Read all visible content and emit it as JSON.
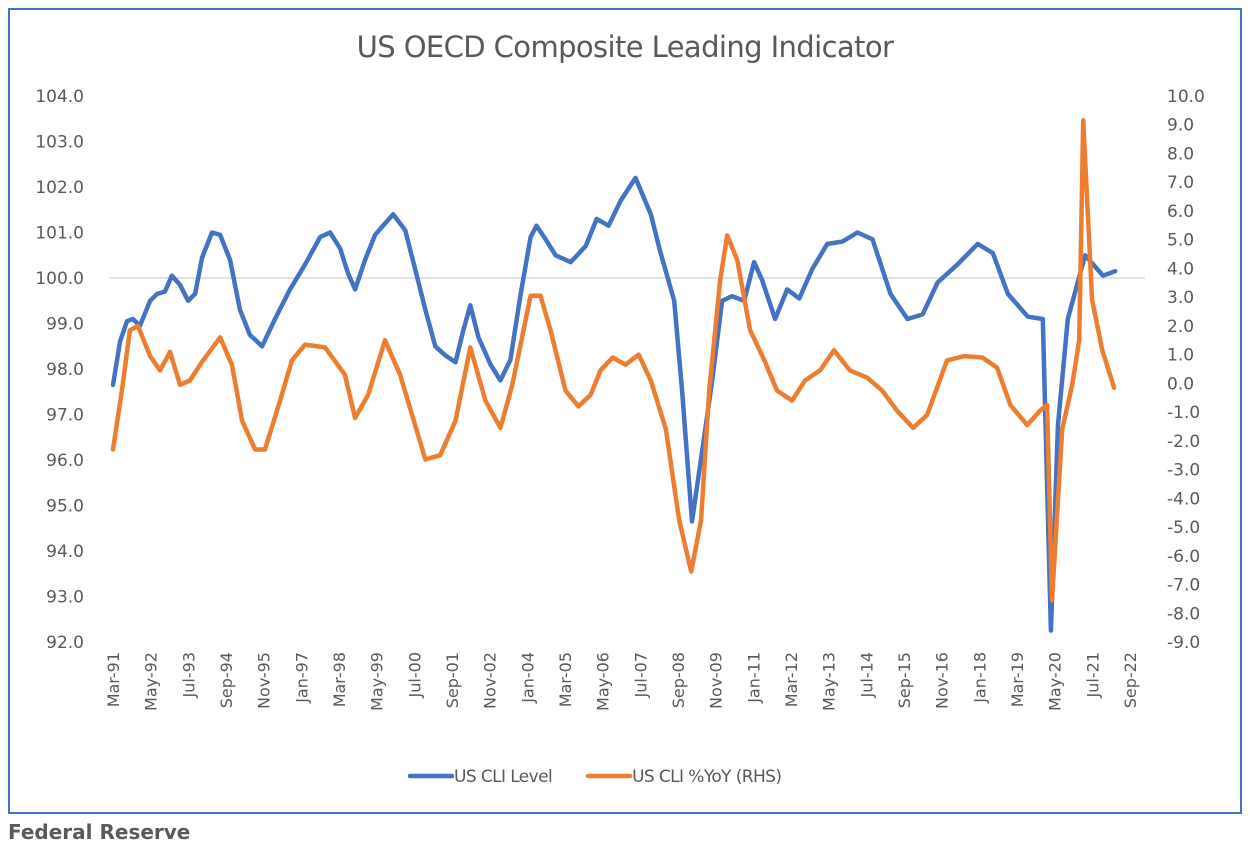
{
  "chart_data": {
    "type": "line",
    "title": "US OECD Composite Leading Indicator",
    "source": "Federal Reserve",
    "x_start": "Mar-91",
    "x_tick_labels": [
      "Mar-91",
      "May-92",
      "Jul-93",
      "Sep-94",
      "Nov-95",
      "Jan-97",
      "Mar-98",
      "May-99",
      "Jul-00",
      "Sep-01",
      "Nov-02",
      "Jan-04",
      "Mar-05",
      "May-06",
      "Jul-07",
      "Sep-08",
      "Nov-09",
      "Jan-11",
      "Mar-12",
      "May-13",
      "Jul-14",
      "Sep-15",
      "Nov-16",
      "Jan-18",
      "Mar-19",
      "May-20",
      "Jul-21",
      "Sep-22"
    ],
    "x_tick_interval_months": 14,
    "x_range_months": [
      0,
      378
    ],
    "reference_line": {
      "axis": "left",
      "value": 100.0
    },
    "axes": {
      "left": {
        "min": 92.0,
        "max": 104.0,
        "step": 1.0,
        "decimals": 1
      },
      "right": {
        "min": -9.0,
        "max": 10.0,
        "step": 1.0,
        "decimals": 1
      }
    },
    "legend_position": "bottom",
    "series": [
      {
        "name": "US CLI Level",
        "axis": "left",
        "color": "#4472c4",
        "points_month_value": [
          [
            0,
            97.65
          ],
          [
            2.6,
            98.6
          ],
          [
            5.2,
            99.05
          ],
          [
            7.4,
            99.1
          ],
          [
            10,
            98.95
          ],
          [
            13.8,
            99.5
          ],
          [
            16.4,
            99.65
          ],
          [
            19.3,
            99.7
          ],
          [
            21.9,
            100.05
          ],
          [
            24.9,
            99.85
          ],
          [
            27.9,
            99.5
          ],
          [
            30.5,
            99.65
          ],
          [
            33.1,
            100.45
          ],
          [
            36.8,
            101.0
          ],
          [
            39.8,
            100.95
          ],
          [
            43.5,
            100.4
          ],
          [
            47.2,
            99.3
          ],
          [
            50.9,
            98.75
          ],
          [
            55.4,
            98.5
          ],
          [
            60.2,
            99.1
          ],
          [
            65.8,
            99.75
          ],
          [
            71.4,
            100.3
          ],
          [
            77,
            100.9
          ],
          [
            80.7,
            101.0
          ],
          [
            84.4,
            100.65
          ],
          [
            87.4,
            100.1
          ],
          [
            90,
            99.75
          ],
          [
            93.7,
            100.4
          ],
          [
            97.4,
            100.95
          ],
          [
            104.1,
            101.4
          ],
          [
            108.6,
            101.05
          ],
          [
            112.3,
            100.2
          ],
          [
            116.1,
            99.3
          ],
          [
            119.8,
            98.5
          ],
          [
            123.5,
            98.3
          ],
          [
            127.3,
            98.15
          ],
          [
            130.2,
            98.85
          ],
          [
            132.8,
            99.4
          ],
          [
            135.8,
            98.7
          ],
          [
            140.3,
            98.1
          ],
          [
            144,
            97.75
          ],
          [
            147.7,
            98.2
          ],
          [
            151.4,
            99.6
          ],
          [
            155.2,
            100.9
          ],
          [
            157.4,
            101.15
          ],
          [
            160.8,
            100.85
          ],
          [
            164.5,
            100.5
          ],
          [
            170.1,
            100.35
          ],
          [
            175.7,
            100.7
          ],
          [
            179.8,
            101.3
          ],
          [
            184.2,
            101.15
          ],
          [
            188.7,
            101.7
          ],
          [
            194.2,
            102.2
          ],
          [
            199.9,
            101.4
          ],
          [
            203.3,
            100.6
          ],
          [
            208.6,
            99.5
          ],
          [
            211.5,
            97.55
          ],
          [
            215.2,
            94.65
          ],
          [
            219,
            96.2
          ],
          [
            222.7,
            97.75
          ],
          [
            226.4,
            99.5
          ],
          [
            230.1,
            99.6
          ],
          [
            234.6,
            99.5
          ],
          [
            238.3,
            100.35
          ],
          [
            241.3,
            99.95
          ],
          [
            246.1,
            99.1
          ],
          [
            250.6,
            99.75
          ],
          [
            255.1,
            99.55
          ],
          [
            259.9,
            100.2
          ],
          [
            265.5,
            100.75
          ],
          [
            271.1,
            100.8
          ],
          [
            276.7,
            101.0
          ],
          [
            282.3,
            100.85
          ],
          [
            289,
            99.65
          ],
          [
            295.3,
            99.1
          ],
          [
            300.9,
            99.2
          ],
          [
            306.5,
            99.9
          ],
          [
            313.9,
            100.3
          ],
          [
            321.4,
            100.75
          ],
          [
            327,
            100.55
          ],
          [
            332.6,
            99.65
          ],
          [
            340,
            99.15
          ],
          [
            345.6,
            99.1
          ],
          [
            348.6,
            92.25
          ],
          [
            351.2,
            96.75
          ],
          [
            354.9,
            99.1
          ],
          [
            361.3,
            100.5
          ],
          [
            368,
            100.05
          ],
          [
            372.5,
            100.15
          ]
        ]
      },
      {
        "name": "US CLI %YoY (RHS)",
        "axis": "right",
        "color": "#ed7d31",
        "points_month_value": [
          [
            0,
            -2.3
          ],
          [
            3.3,
            -0.25
          ],
          [
            6.3,
            1.85
          ],
          [
            9.3,
            2.0
          ],
          [
            13.8,
            0.95
          ],
          [
            17.5,
            0.45
          ],
          [
            21.2,
            1.1
          ],
          [
            24.9,
            -0.05
          ],
          [
            28.6,
            0.1
          ],
          [
            33.1,
            0.75
          ],
          [
            39.8,
            1.6
          ],
          [
            44.2,
            0.65
          ],
          [
            48,
            -1.3
          ],
          [
            52.8,
            -2.3
          ],
          [
            56.5,
            -2.3
          ],
          [
            62.1,
            -0.6
          ],
          [
            66.5,
            0.8
          ],
          [
            71.4,
            1.35
          ],
          [
            78.8,
            1.25
          ],
          [
            86.2,
            0.3
          ],
          [
            90,
            -1.2
          ],
          [
            94.8,
            -0.4
          ],
          [
            101.1,
            1.5
          ],
          [
            106.7,
            0.3
          ],
          [
            112.3,
            -1.45
          ],
          [
            116.1,
            -2.65
          ],
          [
            121.6,
            -2.5
          ],
          [
            127.3,
            -1.3
          ],
          [
            132.8,
            1.25
          ],
          [
            138.4,
            -0.6
          ],
          [
            144,
            -1.55
          ],
          [
            148.4,
            -0.05
          ],
          [
            155.2,
            3.05
          ],
          [
            158.9,
            3.05
          ],
          [
            162.6,
            1.85
          ],
          [
            168.2,
            -0.25
          ],
          [
            173,
            -0.8
          ],
          [
            177.5,
            -0.4
          ],
          [
            181.2,
            0.45
          ],
          [
            185.7,
            0.9
          ],
          [
            190.5,
            0.65
          ],
          [
            195.4,
            1.0
          ],
          [
            199.9,
            0.1
          ],
          [
            205.5,
            -1.6
          ],
          [
            210.4,
            -4.75
          ],
          [
            214.9,
            -6.55
          ],
          [
            218.6,
            -4.75
          ],
          [
            221.6,
            -0.25
          ],
          [
            225.7,
            3.6
          ],
          [
            228.3,
            5.15
          ],
          [
            232,
            4.3
          ],
          [
            236.8,
            1.85
          ],
          [
            242.1,
            0.8
          ],
          [
            246.8,
            -0.25
          ],
          [
            252.4,
            -0.6
          ],
          [
            257.2,
            0.1
          ],
          [
            262.8,
            0.45
          ],
          [
            268,
            1.15
          ],
          [
            273.9,
            0.45
          ],
          [
            280.3,
            0.2
          ],
          [
            285.9,
            -0.25
          ],
          [
            291.4,
            -0.95
          ],
          [
            297.4,
            -1.55
          ],
          [
            302.6,
            -1.1
          ],
          [
            310,
            0.8
          ],
          [
            316.4,
            0.95
          ],
          [
            323.1,
            0.9
          ],
          [
            328.6,
            0.55
          ],
          [
            333.5,
            -0.75
          ],
          [
            339.8,
            -1.45
          ],
          [
            344.6,
            -0.95
          ],
          [
            347.2,
            -0.75
          ],
          [
            349,
            -7.55
          ],
          [
            352.8,
            -1.6
          ],
          [
            356.5,
            -0.05
          ],
          [
            359.1,
            1.5
          ],
          [
            360.6,
            9.15
          ],
          [
            363.9,
            2.9
          ],
          [
            367.7,
            1.15
          ],
          [
            372.1,
            -0.15
          ]
        ]
      }
    ]
  }
}
